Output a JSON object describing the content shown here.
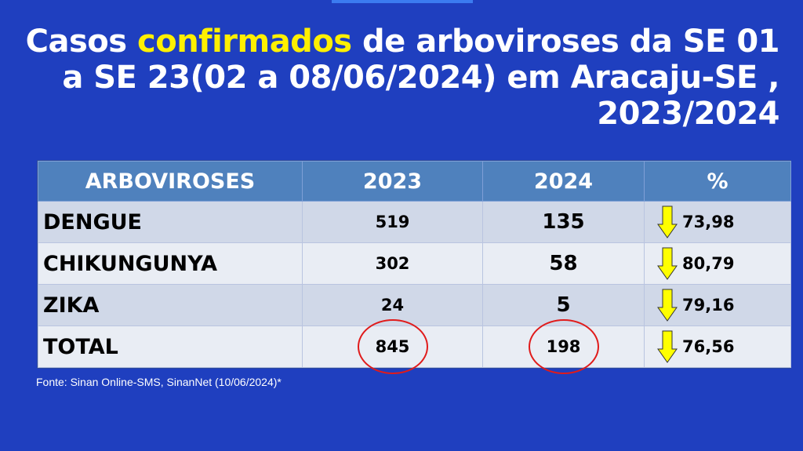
{
  "title": {
    "part1": "Casos ",
    "highlight": "confirmados",
    "part2": " de arboviroses da SE 01 a SE 23(02 a 08/06/2024) em Aracaju-SE , 2023/2024",
    "highlight_color": "#fff000"
  },
  "table": {
    "headers": [
      "ARBOVIROSES",
      "2023",
      "2024",
      "%"
    ],
    "rows": [
      {
        "name": "DENGUE",
        "y2023": "519",
        "y2024": "135",
        "pct": "73,98"
      },
      {
        "name": "CHIKUNGUNYA",
        "y2023": "302",
        "y2024": "58",
        "pct": "80,79"
      },
      {
        "name": "ZIKA",
        "y2023": "24",
        "y2024": "5",
        "pct": "79,16"
      },
      {
        "name": "TOTAL",
        "y2023": "845",
        "y2024": "198",
        "pct": "76,56"
      }
    ],
    "trend_icon": "arrow-down-icon",
    "header_color": "#4f81bd",
    "arrow_color": "#ffff00",
    "circle_color": "#e01b1b"
  },
  "source": "Fonte: Sinan Online-SMS, SinanNet (10/06/2024)*"
}
